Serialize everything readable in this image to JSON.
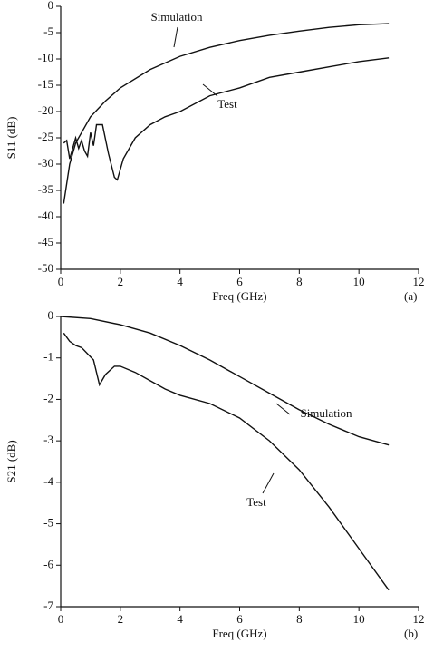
{
  "chart_data": [
    {
      "type": "line",
      "xlabel": "Freq (GHz)",
      "ylabel": "S11 (dB)",
      "panel": "(a)",
      "xlim": [
        0,
        12
      ],
      "xticks": [
        0,
        2,
        4,
        6,
        8,
        10,
        12
      ],
      "ylim": [
        -50,
        0
      ],
      "yticks": [
        0,
        -5,
        -10,
        -15,
        -20,
        -25,
        -30,
        -35,
        -40,
        -45,
        -50
      ],
      "series": [
        {
          "name": "Simulation",
          "color": "#111111",
          "x": [
            0.1,
            0.3,
            0.5,
            1,
            1.5,
            2,
            3,
            4,
            5,
            6,
            7,
            8,
            9,
            10,
            11
          ],
          "values": [
            -37.5,
            -30,
            -26,
            -21,
            -18,
            -15.5,
            -12,
            -9.5,
            -7.8,
            -6.5,
            -5.5,
            -4.7,
            -4,
            -3.5,
            -3.3
          ]
        },
        {
          "name": "Test",
          "color": "#111111",
          "x": [
            0.1,
            0.2,
            0.3,
            0.5,
            0.6,
            0.7,
            0.8,
            0.9,
            1.0,
            1.1,
            1.2,
            1.4,
            1.6,
            1.8,
            1.9,
            2.1,
            2.5,
            3,
            3.5,
            4,
            5,
            6,
            7,
            8,
            9,
            10,
            11
          ],
          "values": [
            -26,
            -25.5,
            -29,
            -25,
            -27,
            -25.5,
            -27.5,
            -28.5,
            -24,
            -26.5,
            -22.5,
            -22.5,
            -28,
            -32.5,
            -33,
            -29,
            -25,
            -22.5,
            -21,
            -20,
            -17,
            -15.5,
            -13.5,
            -12.5,
            -11.5,
            -10.5,
            -9.8
          ]
        }
      ]
    },
    {
      "type": "line",
      "xlabel": "Freq (GHz)",
      "ylabel": "S21 (dB)",
      "panel": "(b)",
      "xlim": [
        0,
        12
      ],
      "xticks": [
        0,
        2,
        4,
        6,
        8,
        10,
        12
      ],
      "ylim": [
        -7,
        0
      ],
      "yticks": [
        0,
        -1,
        -2,
        -3,
        -4,
        -5,
        -6,
        -7
      ],
      "series": [
        {
          "name": "Simulation",
          "color": "#111111",
          "x": [
            0,
            1,
            2,
            3,
            4,
            5,
            6,
            7,
            8,
            9,
            10,
            11
          ],
          "values": [
            0,
            -0.05,
            -0.2,
            -0.4,
            -0.7,
            -1.05,
            -1.45,
            -1.85,
            -2.25,
            -2.6,
            -2.9,
            -3.1
          ]
        },
        {
          "name": "Test",
          "color": "#111111",
          "x": [
            0.1,
            0.3,
            0.5,
            0.7,
            0.9,
            1.1,
            1.3,
            1.5,
            1.8,
            2,
            2.5,
            3,
            3.5,
            4,
            5,
            6,
            7,
            8,
            9,
            10,
            11
          ],
          "values": [
            -0.4,
            -0.6,
            -0.7,
            -0.75,
            -0.9,
            -1.05,
            -1.65,
            -1.4,
            -1.2,
            -1.2,
            -1.35,
            -1.55,
            -1.75,
            -1.9,
            -2.1,
            -2.45,
            -3.0,
            -3.7,
            -4.6,
            -5.6,
            -6.6
          ]
        }
      ]
    }
  ]
}
